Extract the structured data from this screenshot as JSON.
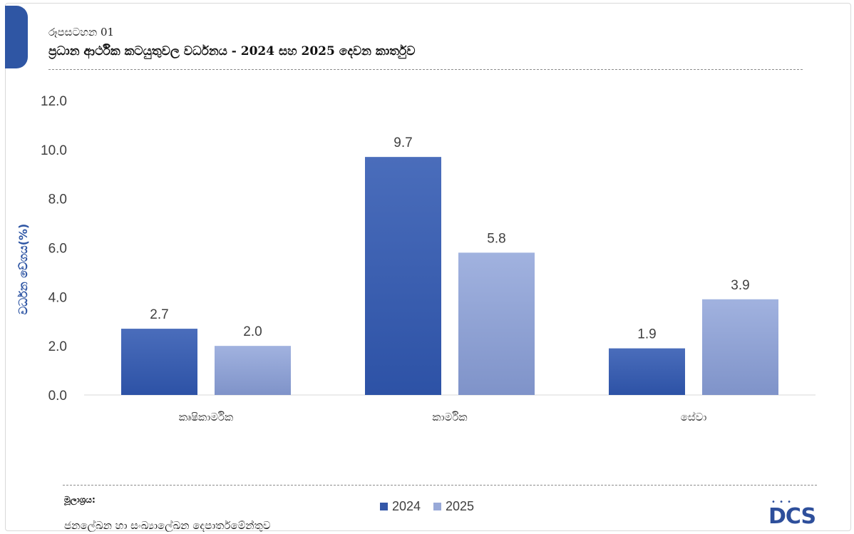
{
  "figure": {
    "number": "රූපසටහන 01",
    "title": "ප්‍රධාන ආර්ථික කටයුතුවල වර්ධනය - 2024 සහ 2025 දෙවන කාර්තුව"
  },
  "source": {
    "label": "මූලාශ්‍රය:",
    "text": "ජනලේඛන හා සංඛ්‍යාලේඛන දෙපාර්තමේන්තුව"
  },
  "logo": {
    "text": "DCS",
    "icon": "dcs-logo-icon"
  },
  "colors": {
    "accent_tab": "#2f56a4",
    "series_2024": "#3457a8",
    "series_2025": "#98a9d8",
    "axis_text": "#404040",
    "ylabel": "#2f56a4"
  },
  "chart_data": {
    "type": "bar",
    "categories": [
      "කෘෂිකාර්මික",
      "කාර්මික",
      "සේවා"
    ],
    "series": [
      {
        "name": "2024",
        "values": [
          2.7,
          9.7,
          1.9
        ]
      },
      {
        "name": "2025",
        "values": [
          2.0,
          5.8,
          3.9
        ]
      }
    ],
    "ylabel": "වර්ධන වේගය(%)",
    "xlabel": "",
    "ylim": [
      0,
      12
    ],
    "yticks": [
      "0.0",
      "2.0",
      "4.0",
      "6.0",
      "8.0",
      "10.0",
      "12.0"
    ],
    "data_labels": [
      [
        "2.7",
        "9.7",
        "1.9"
      ],
      [
        "2.0",
        "5.8",
        "3.9"
      ]
    ],
    "grid": false,
    "legend": "bottom-center"
  }
}
